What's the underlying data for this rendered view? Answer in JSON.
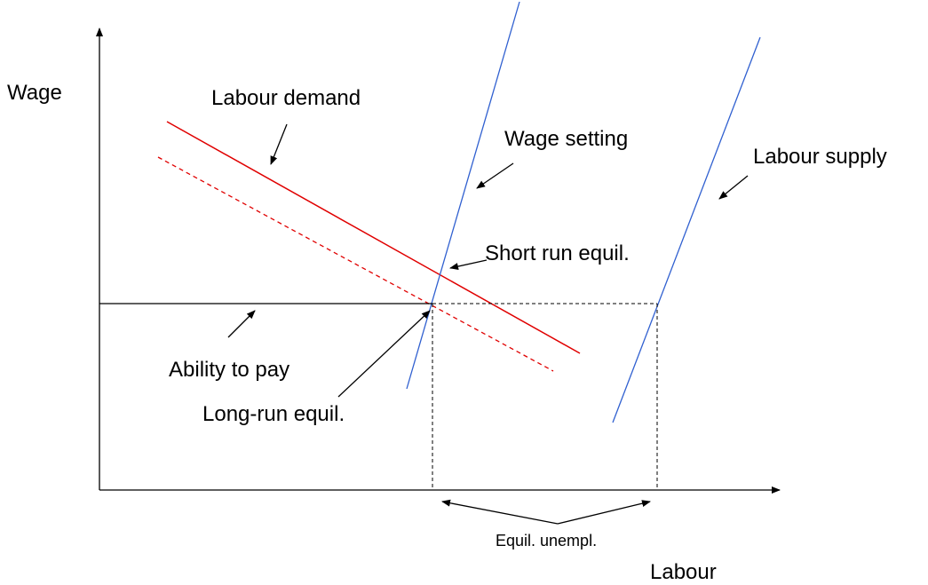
{
  "axes": {
    "y_label": "Wage",
    "x_label": "Labour"
  },
  "curves": {
    "labour_demand": "Labour demand",
    "wage_setting": "Wage setting",
    "labour_supply": "Labour supply"
  },
  "annotations": {
    "short_run": "Short run equil.",
    "ability_to_pay": "Ability to pay",
    "long_run": "Long-run equil.",
    "unemployment": "Equil. unempl."
  }
}
